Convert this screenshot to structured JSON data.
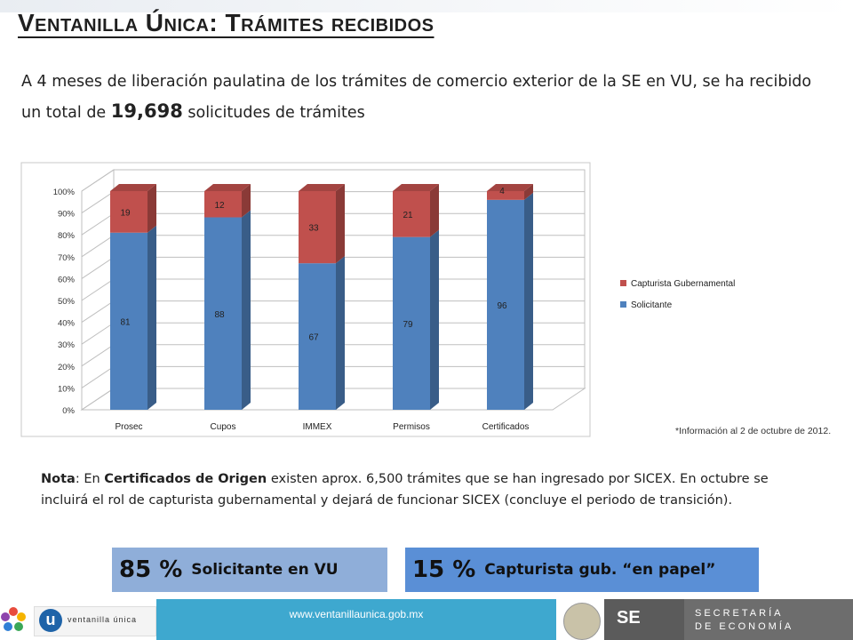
{
  "slide": {
    "title": "Ventanilla Única: Trámites recibidos",
    "intro_part1": "A  4 meses de liberación paulatina de los trámites de comercio exterior de la SE en VU, se ha recibido un total de ",
    "intro_total": "19,698",
    "intro_part2": " solicitudes de trámites",
    "info_note": "*Información al 2 de octubre de 2012.",
    "nota_label": "Nota",
    "nota_part1": ": En ",
    "nota_bold": "Certificados de Origen",
    "nota_part2": " existen aprox.  6,500 trámites que se han ingresado por SICEX.  En octubre se incluirá el rol de capturista gubernamental y dejará de funcionar SICEX (concluye el periodo de transición).",
    "box1_pct": "85 %",
    "box1_label": "Solicitante en VU",
    "box2_pct": "15 %",
    "box2_label": "Capturista gub.  “en papel”",
    "footer_url": "www.ventanillaunica.gob.mx",
    "footer_vu_text": "ventanilla única",
    "footer_se": "SE",
    "footer_sec1": "SECRETARÍA",
    "footer_sec2": "DE ECONOMÍA",
    "colors": {
      "solicitante": "#4f81bd",
      "capturista": "#c0504d",
      "box1": "#8faed9",
      "box2": "#5a8fd6",
      "url_band": "#3ea8cf"
    }
  },
  "chart_data": {
    "type": "bar",
    "stacked": true,
    "categories": [
      "Prosec",
      "Cupos",
      "IMMEX",
      "Permisos",
      "Certificados"
    ],
    "series": [
      {
        "name": "Solicitante",
        "values": [
          81,
          88,
          67,
          79,
          96
        ],
        "color": "#4f81bd"
      },
      {
        "name": "Capturista Gubernamental",
        "values": [
          19,
          12,
          33,
          21,
          4
        ],
        "color": "#c0504d"
      }
    ],
    "ylim": [
      0,
      100
    ],
    "yticks": [
      "0%",
      "10%",
      "20%",
      "30%",
      "40%",
      "50%",
      "60%",
      "70%",
      "80%",
      "90%",
      "100%"
    ],
    "legend_position": "right",
    "grid": true
  }
}
